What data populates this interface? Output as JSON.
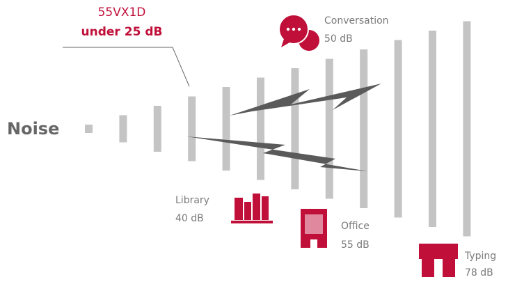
{
  "title": "Noise",
  "product": {
    "name": "55VX1D",
    "level": "under 25 dB"
  },
  "labels": [
    {
      "name": "Conversation",
      "level": "50 dB"
    },
    {
      "name": "Library",
      "level": "40 dB"
    },
    {
      "name": "Office",
      "level": "55 dB"
    },
    {
      "name": "Typing",
      "level": "78 dB"
    }
  ]
}
